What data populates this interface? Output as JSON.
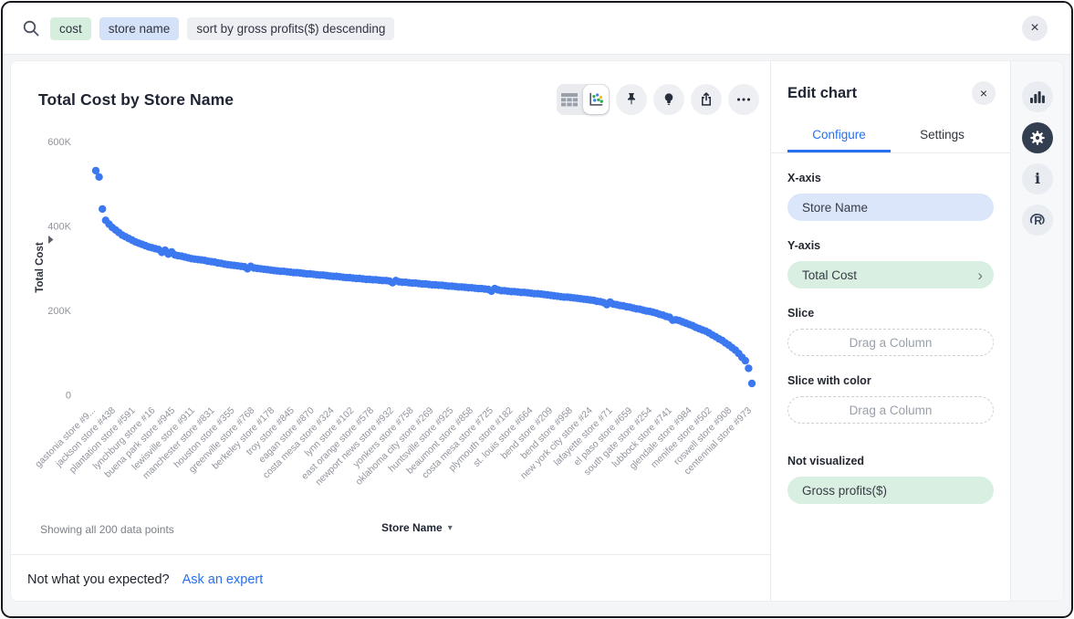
{
  "search_bar": {
    "tokens": [
      {
        "label": "cost",
        "type": "measure"
      },
      {
        "label": "store name",
        "type": "attribute"
      },
      {
        "label": "sort by gross profits($) descending",
        "type": "phrase"
      }
    ],
    "close_label": "×"
  },
  "chart": {
    "title": "Total Cost by Store Name",
    "footer": {
      "showing": "Showing all 200 data points",
      "x_axis_control": "Store Name",
      "caret": "▾"
    },
    "question": {
      "text": "Not what you expected?",
      "link": "Ask an expert"
    }
  },
  "chart_data": {
    "type": "scatter",
    "title": "Total Cost by Store Name",
    "xlabel": "Store Name",
    "ylabel": "Total Cost",
    "y_ticks": [
      "600K",
      "400K",
      "200K",
      "0"
    ],
    "ylim_k": [
      0,
      600
    ],
    "points_shown": 200,
    "dot_color": "#3c78f0",
    "x_tick_labels": [
      "gastonia store #9...",
      "jackson store #438",
      "plantation store #591",
      "lynchburg store #16",
      "buena park store #945",
      "lewisville store #911",
      "manchester store #831",
      "houston store #355",
      "greenville store #768",
      "berkeley store #178",
      "troy store #845",
      "eagan store #870",
      "costa mesa store #324",
      "lynn store #102",
      "east orange store #578",
      "newport news store #932",
      "yonkers store #758",
      "oklahoma city store #269",
      "huntsville store #925",
      "beaumont store #858",
      "costa mesa store #725",
      "plymouth store #182",
      "st. louis store #664",
      "bend store #209",
      "bend store #958",
      "new york city store #24",
      "lafayette store #71",
      "el paso store #659",
      "south gate store #254",
      "lubbock store #741",
      "glendale store #984",
      "menifee store #502",
      "roswell store #908",
      "centennial store #973"
    ],
    "values_k": [
      531,
      516,
      440,
      413,
      404,
      396,
      390,
      384,
      378,
      374,
      370,
      366,
      362,
      359,
      356,
      353,
      350,
      348,
      346,
      344,
      337,
      342,
      333,
      338,
      331,
      329,
      328,
      326,
      324,
      322,
      321,
      320,
      319,
      318,
      316,
      315,
      314,
      312,
      311,
      309,
      308,
      307,
      306,
      305,
      304,
      303,
      298,
      304,
      300,
      299,
      298,
      297,
      296,
      295,
      294,
      293,
      292,
      292,
      291,
      290,
      289,
      289,
      288,
      287,
      286,
      286,
      285,
      284,
      283,
      283,
      282,
      281,
      280,
      280,
      279,
      278,
      277,
      277,
      276,
      275,
      275,
      274,
      273,
      273,
      272,
      272,
      271,
      270,
      270,
      269,
      265,
      270,
      267,
      266,
      266,
      265,
      264,
      264,
      263,
      262,
      262,
      261,
      260,
      260,
      259,
      259,
      258,
      257,
      257,
      256,
      255,
      255,
      254,
      253,
      253,
      252,
      251,
      251,
      250,
      249,
      245,
      251,
      248,
      246,
      246,
      245,
      244,
      244,
      243,
      242,
      242,
      241,
      240,
      239,
      239,
      238,
      237,
      236,
      235,
      234,
      233,
      232,
      231,
      231,
      230,
      229,
      228,
      227,
      226,
      225,
      224,
      223,
      221,
      220,
      218,
      213,
      219,
      214,
      213,
      211,
      210,
      208,
      207,
      205,
      203,
      202,
      200,
      198,
      197,
      195,
      193,
      190,
      188,
      185,
      183,
      176,
      177,
      175,
      172,
      169,
      166,
      163,
      159,
      156,
      153,
      150,
      146,
      141,
      137,
      132,
      128,
      122,
      117,
      111,
      105,
      97,
      88,
      80,
      62,
      26
    ]
  },
  "edit_panel": {
    "title": "Edit chart",
    "close_label": "×",
    "tabs": [
      {
        "label": "Configure",
        "active": true
      },
      {
        "label": "Settings",
        "active": false
      }
    ],
    "fields": [
      {
        "label": "X-axis",
        "value": "Store Name",
        "style": "blue"
      },
      {
        "label": "Y-axis",
        "value": "Total Cost",
        "style": "green",
        "chevron": "›"
      },
      {
        "label": "Slice",
        "placeholder": "Drag a Column"
      },
      {
        "label": "Slice with color",
        "placeholder": "Drag a Column"
      },
      {
        "label": "Not visualized",
        "value": "Gross profits($)",
        "style": "green"
      }
    ]
  },
  "rail": {
    "icons": [
      "bar-chart",
      "settings-gear",
      "info",
      "r-analytics"
    ]
  },
  "colors": {
    "accent_blue": "#2770ef",
    "dot_blue": "#3c78f0",
    "pill_blue": "#dbe6fb",
    "pill_green": "#d9efe2",
    "token_green": "#d6eedd",
    "token_blue": "#d4e2f9",
    "token_gray": "#edeff3",
    "rail_active": "#333e50"
  }
}
